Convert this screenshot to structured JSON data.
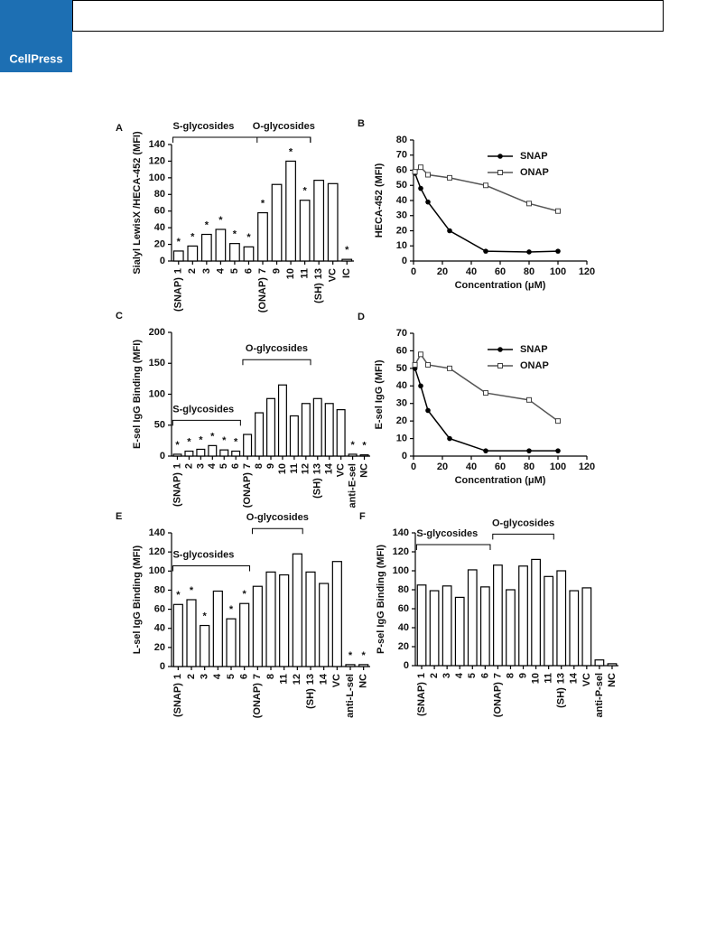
{
  "header": {
    "logo": "CellPress"
  },
  "chart_data": [
    {
      "type": "bar",
      "panel": "A",
      "ylabel": "Sialyl LewisX /HECA-452 (MFI)",
      "categories": [
        "1",
        "2",
        "3",
        "4",
        "5",
        "6",
        "7",
        "9",
        "10",
        "11",
        "13",
        "VC",
        "IC"
      ],
      "sublabels": [
        "(SNAP)",
        null,
        null,
        null,
        null,
        null,
        "(ONAP)",
        null,
        null,
        null,
        "(SH)",
        null,
        null
      ],
      "values": [
        12,
        18,
        32,
        38,
        21,
        17,
        58,
        92,
        120,
        73,
        97,
        93,
        2
      ],
      "markers": [
        "*",
        "*",
        "*",
        "*",
        "*",
        "*",
        "*",
        null,
        "*",
        "*",
        null,
        null,
        "*"
      ],
      "brackets": [
        {
          "text": "S-glycosides",
          "from": "1",
          "to": "11"
        },
        {
          "text": "O-glycosides",
          "from": "7",
          "to": "11"
        }
      ],
      "ylim": [
        0,
        140
      ],
      "yticks": [
        0,
        20,
        40,
        60,
        80,
        100,
        120,
        140
      ]
    },
    {
      "type": "line",
      "panel": "B",
      "xlabel": "Concentration (μM)",
      "ylabel": "HECA-452 (MFI)",
      "x": [
        1,
        5,
        10,
        25,
        50,
        80,
        100
      ],
      "series": [
        {
          "name": "SNAP",
          "marker": "circle",
          "values": [
            58,
            48,
            39,
            20,
            6.5,
            6,
            6.5
          ]
        },
        {
          "name": "ONAP",
          "marker": "square",
          "values": [
            59,
            62,
            57,
            55,
            50,
            38,
            33
          ]
        }
      ],
      "xlim": [
        0,
        120
      ],
      "xticks": [
        0,
        20,
        40,
        60,
        80,
        100,
        120
      ],
      "ylim": [
        0,
        80
      ],
      "yticks": [
        0,
        10,
        20,
        30,
        40,
        50,
        60,
        70,
        80
      ],
      "legend": "upper right"
    },
    {
      "type": "bar",
      "panel": "C",
      "ylabel": "E-sel IgG Binding (MFI)",
      "categories": [
        "1",
        "2",
        "3",
        "4",
        "5",
        "6",
        "7",
        "8",
        "9",
        "10",
        "11",
        "12",
        "13",
        "14",
        "VC",
        "anti-E-sel",
        "NC"
      ],
      "sublabels": [
        "(SNAP)",
        null,
        null,
        null,
        null,
        null,
        "(ONAP)",
        null,
        null,
        null,
        null,
        null,
        "(SH)",
        null,
        null,
        null,
        null
      ],
      "values": [
        3,
        8,
        11,
        17,
        10,
        8,
        35,
        70,
        93,
        115,
        65,
        85,
        93,
        85,
        75,
        3,
        2
      ],
      "markers": [
        "*",
        "*",
        "*",
        "*",
        "*",
        "*",
        null,
        null,
        null,
        null,
        null,
        null,
        null,
        null,
        null,
        "*",
        "*"
      ],
      "brackets": [
        {
          "text": "S-glycosides",
          "from": "1",
          "to": "6"
        },
        {
          "text": "O-glycosides",
          "from": "7",
          "to": "12"
        }
      ],
      "ylim": [
        0,
        200
      ],
      "yticks": [
        0,
        50,
        100,
        150,
        200
      ]
    },
    {
      "type": "line",
      "panel": "D",
      "xlabel": "Concentration (μM)",
      "ylabel": "E-sel IgG (MFI)",
      "x": [
        1,
        5,
        10,
        25,
        50,
        80,
        100
      ],
      "series": [
        {
          "name": "SNAP",
          "marker": "circle",
          "values": [
            50,
            40,
            26,
            10,
            3,
            3,
            3
          ]
        },
        {
          "name": "ONAP",
          "marker": "square",
          "values": [
            52,
            58,
            52,
            50,
            36,
            32,
            20
          ]
        }
      ],
      "xlim": [
        0,
        120
      ],
      "xticks": [
        0,
        20,
        40,
        60,
        80,
        100,
        120
      ],
      "ylim": [
        0,
        70
      ],
      "yticks": [
        0,
        10,
        20,
        30,
        40,
        50,
        60,
        70
      ],
      "legend": "upper right"
    },
    {
      "type": "bar",
      "panel": "E",
      "ylabel": "L-sel IgG Binding (MFI)",
      "categories": [
        "1",
        "2",
        "3",
        "4",
        "5",
        "6",
        "7",
        "8",
        "11",
        "12",
        "13",
        "14",
        "VC",
        "anti-L-sel",
        "NC"
      ],
      "sublabels": [
        "(SNAP)",
        null,
        null,
        null,
        null,
        null,
        "(ONAP)",
        null,
        null,
        null,
        "(SH)",
        null,
        null,
        null,
        null
      ],
      "values": [
        65,
        70,
        43,
        79,
        50,
        66,
        84,
        99,
        96,
        118,
        99,
        87,
        110,
        2,
        2
      ],
      "markers": [
        "*",
        "*",
        "*",
        null,
        "*",
        "*",
        null,
        null,
        null,
        null,
        null,
        null,
        null,
        "*",
        "*"
      ],
      "brackets": [
        {
          "text": "S-glycosides",
          "from": "1",
          "to": "6"
        },
        {
          "text": "O-glycosides",
          "from": "7",
          "to": "12"
        }
      ],
      "ylim": [
        0,
        140
      ],
      "yticks": [
        0,
        20,
        40,
        60,
        80,
        100,
        120,
        140
      ]
    },
    {
      "type": "bar",
      "panel": "F",
      "ylabel": "P-sel IgG Binding (MFI)",
      "categories": [
        "1",
        "2",
        "3",
        "4",
        "5",
        "6",
        "7",
        "8",
        "9",
        "10",
        "11",
        "13",
        "14",
        "VC",
        "anti-P-sel",
        "NC"
      ],
      "sublabels": [
        "(SNAP)",
        null,
        null,
        null,
        null,
        null,
        "(ONAP)",
        null,
        null,
        null,
        null,
        "(SH)",
        null,
        null,
        null,
        null
      ],
      "values": [
        85,
        79,
        84,
        72,
        101,
        83,
        106,
        80,
        105,
        112,
        94,
        100,
        79,
        82,
        6,
        2
      ],
      "brackets": [
        {
          "text": "S-glycosides",
          "from": "1",
          "to": "6"
        },
        {
          "text": "O-glycosides",
          "from": "7",
          "to": "11"
        }
      ],
      "ylim": [
        0,
        140
      ],
      "yticks": [
        0,
        20,
        40,
        60,
        80,
        100,
        120,
        140
      ]
    }
  ]
}
